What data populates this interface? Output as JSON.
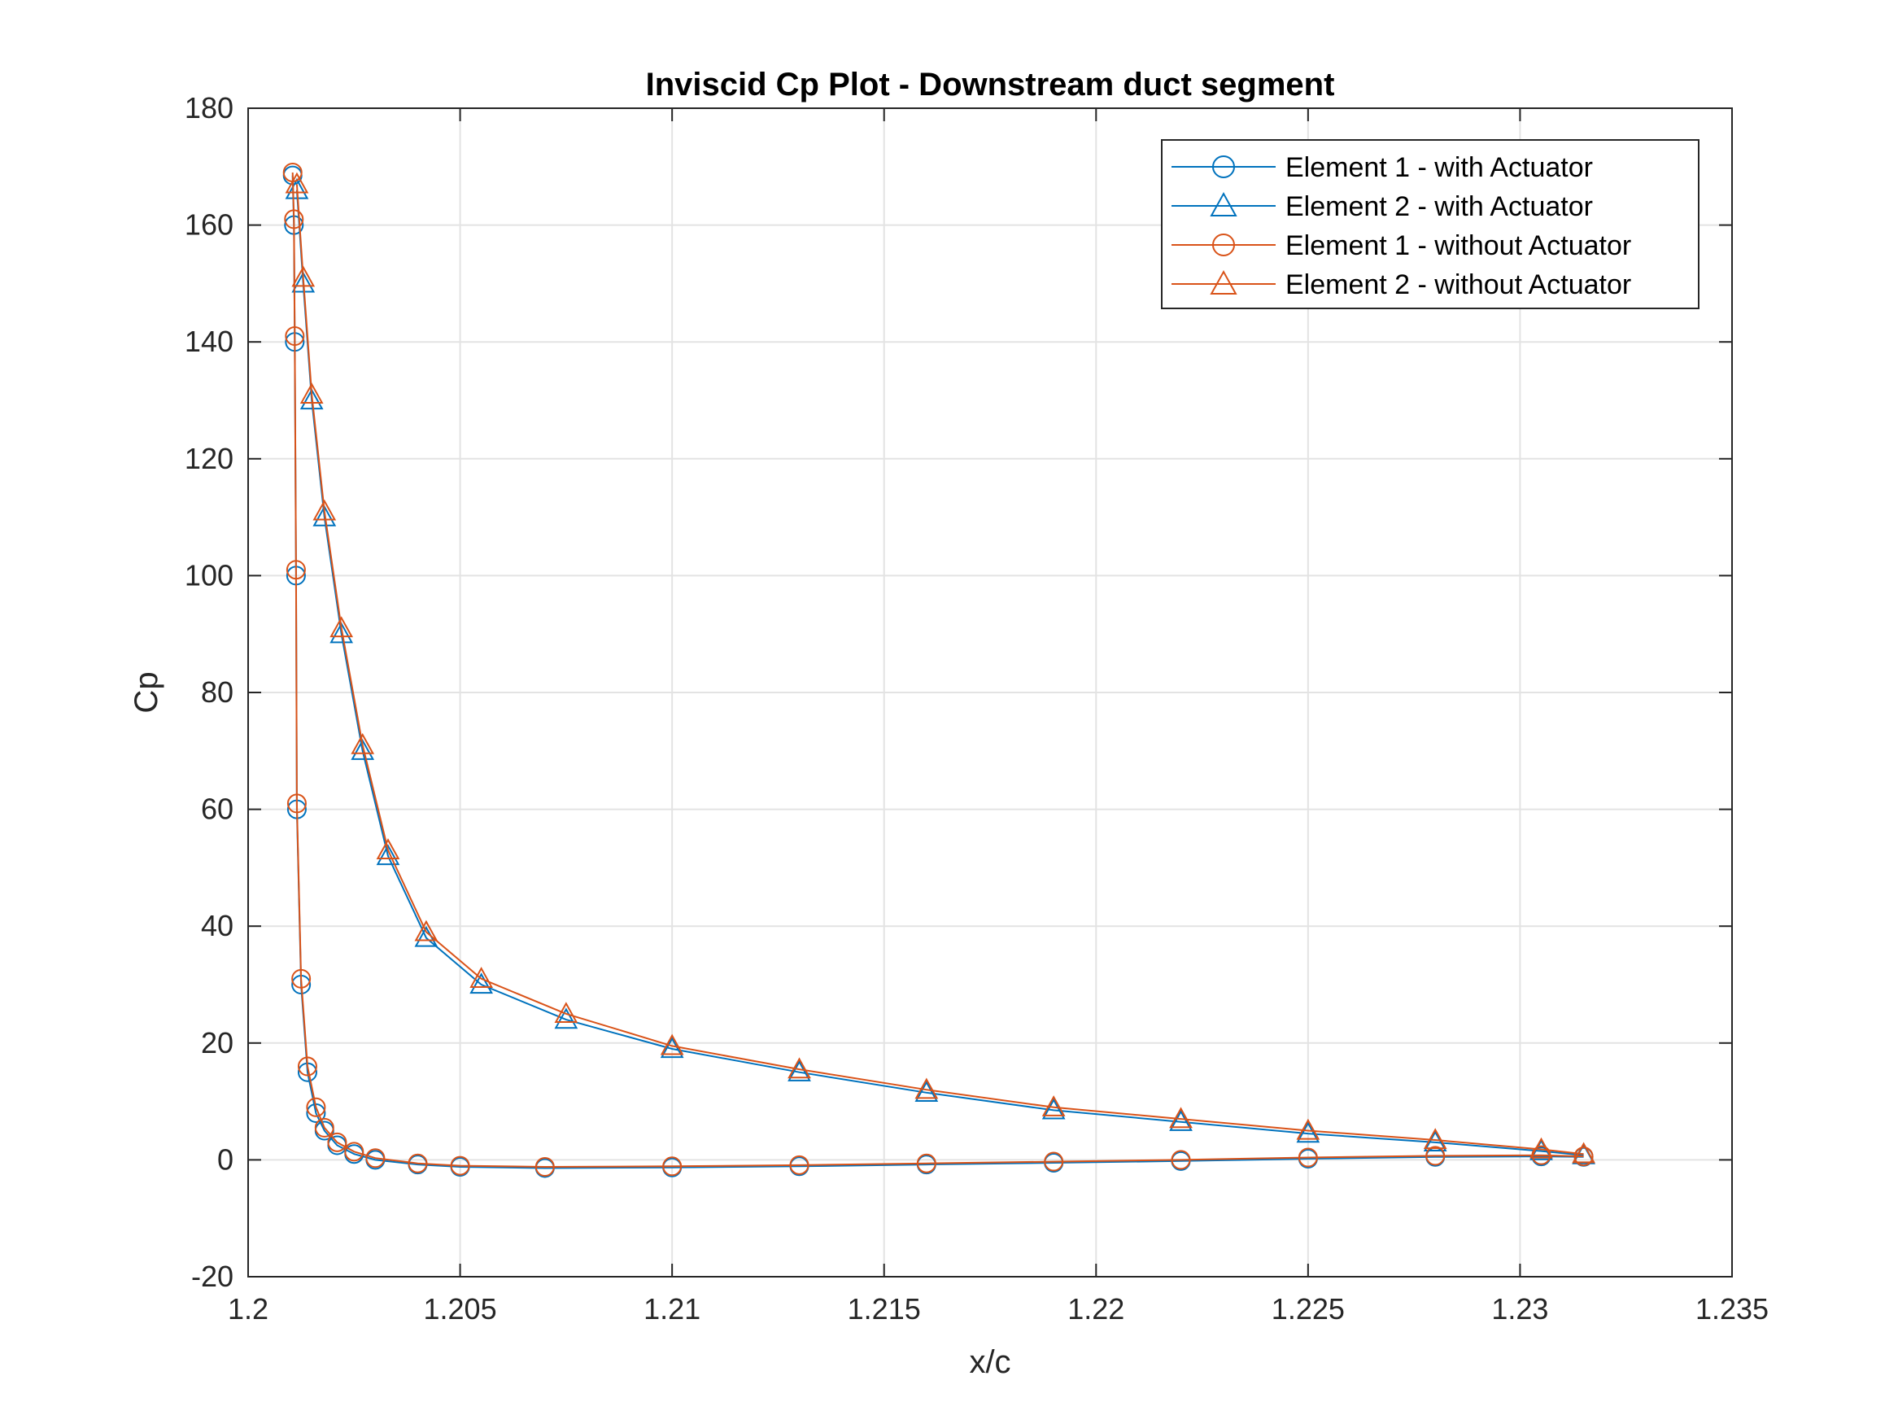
{
  "chart_data": {
    "type": "line",
    "title": "Inviscid Cp Plot - Downstream duct segment",
    "xlabel": "x/c",
    "ylabel": "Cp",
    "xlim": [
      1.2,
      1.235
    ],
    "ylim": [
      -20,
      180
    ],
    "xticks": [
      "1.2",
      "1.205",
      "1.21",
      "1.215",
      "1.22",
      "1.225",
      "1.23",
      "1.235"
    ],
    "yticks": [
      "-20",
      "0",
      "20",
      "40",
      "60",
      "80",
      "100",
      "120",
      "140",
      "160",
      "180"
    ],
    "grid": true,
    "legend_position": "top-right",
    "series": [
      {
        "name": "Element 1 - with Actuator",
        "color": "#0072BD",
        "marker": "circle",
        "x": [
          1.20105,
          1.20108,
          1.2011,
          1.20113,
          1.20115,
          1.20125,
          1.2014,
          1.2016,
          1.2018,
          1.2021,
          1.2025,
          1.203,
          1.204,
          1.205,
          1.207,
          1.21,
          1.213,
          1.216,
          1.219,
          1.222,
          1.225,
          1.228,
          1.2305,
          1.2315
        ],
        "y": [
          168.5,
          160,
          140,
          100,
          60,
          30,
          15,
          8,
          5,
          2.5,
          1,
          0,
          -0.8,
          -1.2,
          -1.4,
          -1.3,
          -1.1,
          -0.8,
          -0.5,
          -0.2,
          0.2,
          0.5,
          0.6,
          0.5
        ]
      },
      {
        "name": "Element 2 - with Actuator",
        "color": "#0072BD",
        "marker": "triangle",
        "x": [
          1.20115,
          1.2013,
          1.2015,
          1.2018,
          1.2022,
          1.2027,
          1.2033,
          1.2042,
          1.2055,
          1.2075,
          1.21,
          1.213,
          1.216,
          1.219,
          1.222,
          1.225,
          1.228,
          1.2305,
          1.2315
        ],
        "y": [
          166,
          150,
          130,
          110,
          90,
          70,
          52,
          38,
          30,
          24,
          19,
          15,
          11.5,
          8.5,
          6.5,
          4.5,
          3,
          1.5,
          0.8
        ]
      },
      {
        "name": "Element 1 - without Actuator",
        "color": "#D95319",
        "marker": "circle",
        "x": [
          1.20105,
          1.20108,
          1.2011,
          1.20113,
          1.20115,
          1.20125,
          1.2014,
          1.2016,
          1.2018,
          1.2021,
          1.2025,
          1.203,
          1.204,
          1.205,
          1.207,
          1.21,
          1.213,
          1.216,
          1.219,
          1.222,
          1.225,
          1.228,
          1.2305,
          1.2315
        ],
        "y": [
          169,
          161,
          141,
          101,
          61,
          31,
          16,
          9,
          5.5,
          3,
          1.4,
          0.3,
          -0.6,
          -1,
          -1.2,
          -1.1,
          -0.9,
          -0.6,
          -0.3,
          0,
          0.4,
          0.7,
          0.8,
          0.6
        ]
      },
      {
        "name": "Element 2 - without Actuator",
        "color": "#D95319",
        "marker": "triangle",
        "x": [
          1.20115,
          1.2013,
          1.2015,
          1.2018,
          1.2022,
          1.2027,
          1.2033,
          1.2042,
          1.2055,
          1.2075,
          1.21,
          1.213,
          1.216,
          1.219,
          1.222,
          1.225,
          1.228,
          1.2305,
          1.2315
        ],
        "y": [
          167,
          151,
          131,
          111,
          91,
          71,
          53,
          39,
          31,
          25,
          19.5,
          15.5,
          12,
          9,
          7,
          5,
          3.4,
          1.8,
          1
        ]
      }
    ]
  }
}
